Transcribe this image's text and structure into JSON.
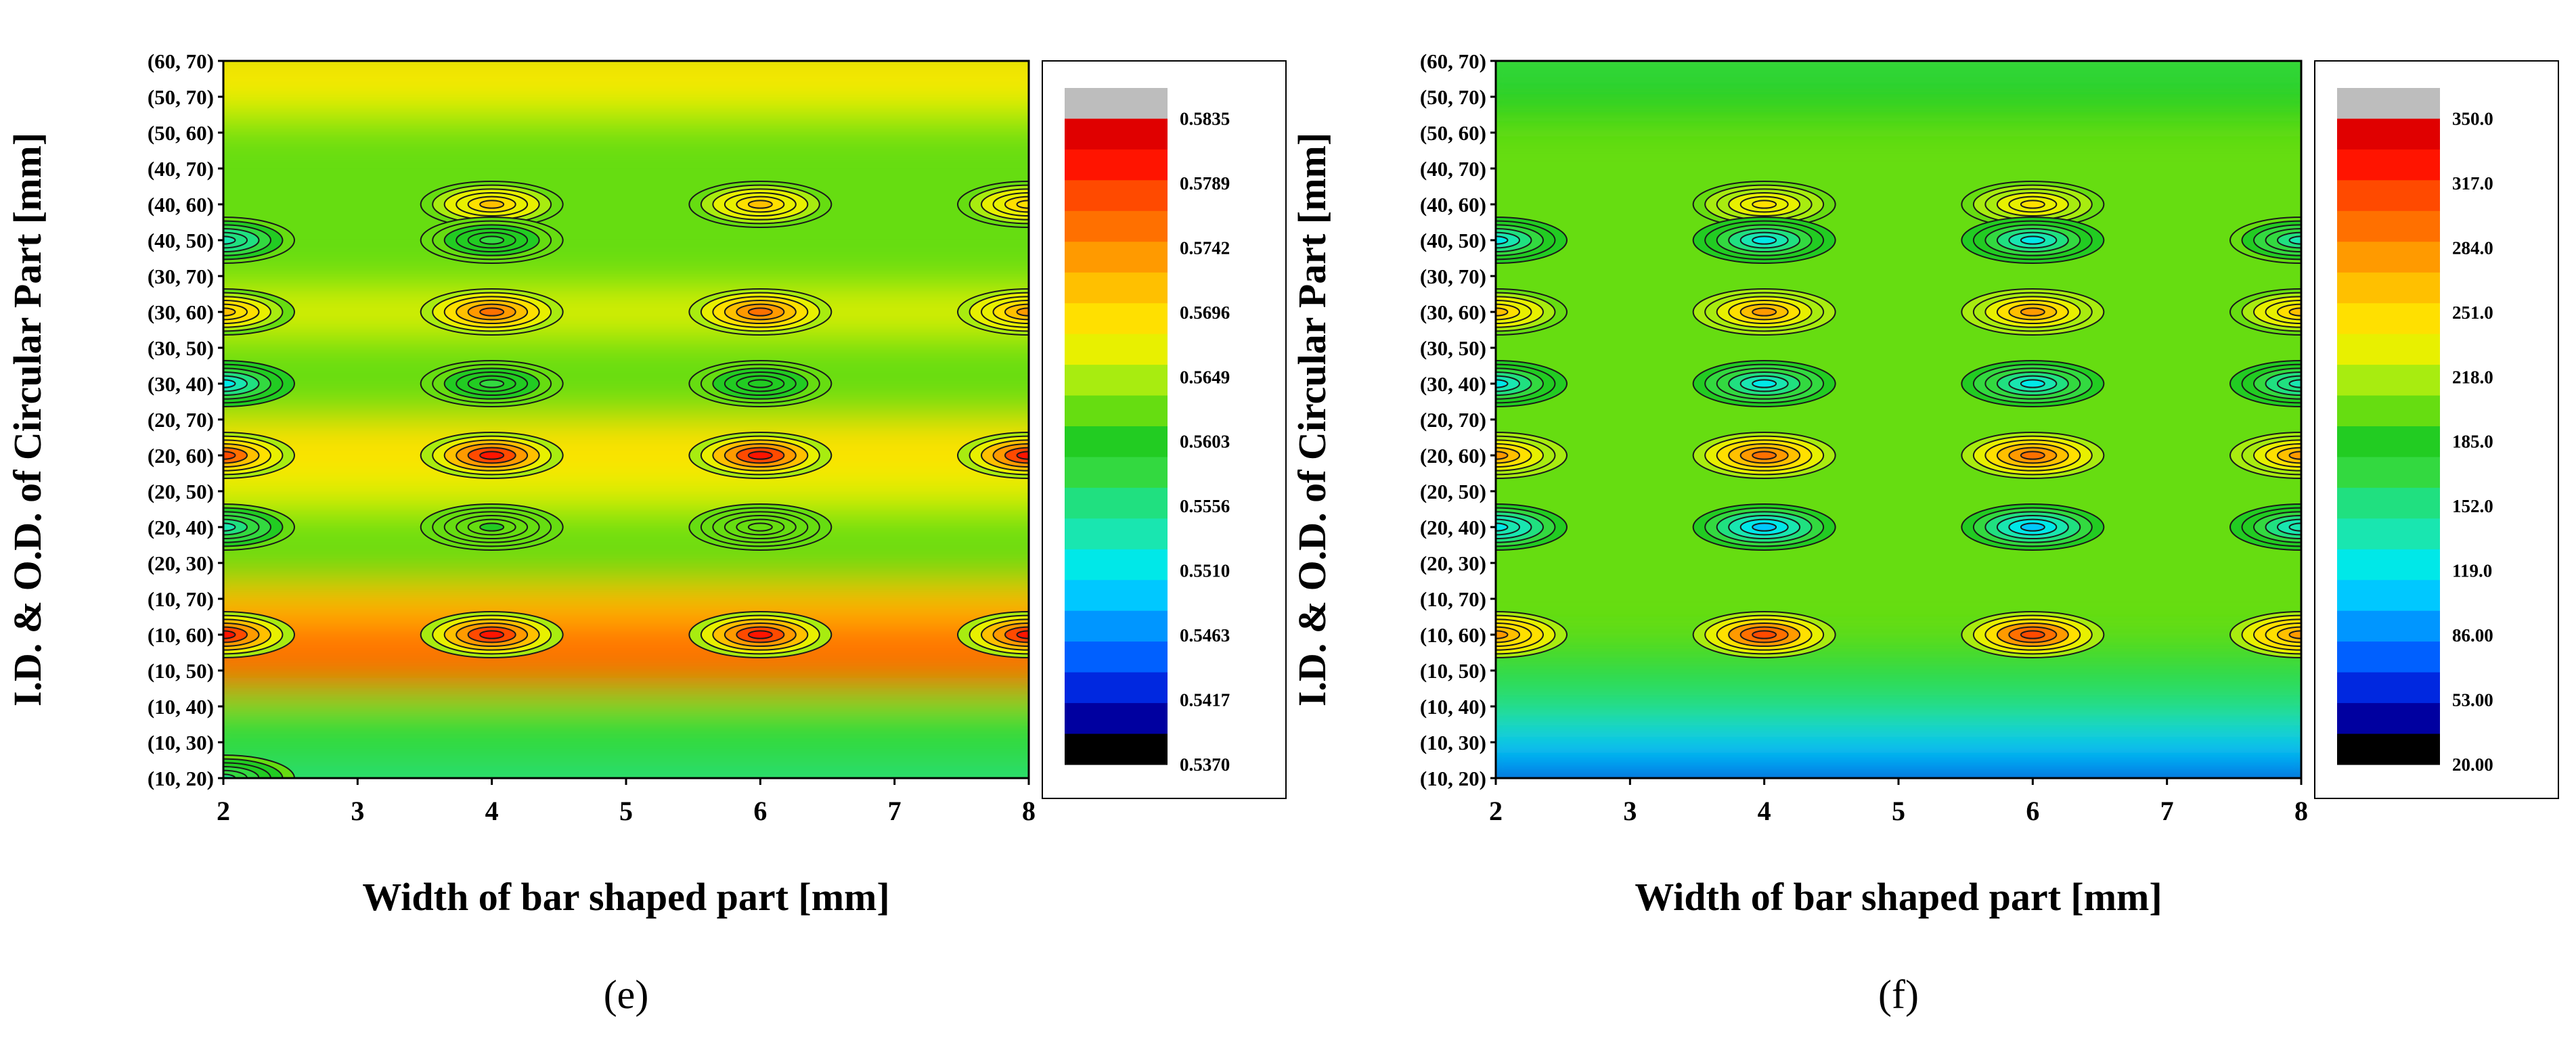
{
  "chart_data": [
    {
      "type": "heatmap",
      "subtitle": "(e)",
      "xlabel": "Width of bar shaped part [mm]",
      "ylabel": "I.D. & O.D. of Circular Part [mm]",
      "x": [
        2,
        3,
        4,
        5,
        6,
        7,
        8
      ],
      "xlim": [
        2,
        8
      ],
      "y_categories": [
        "(10, 20)",
        "(10, 30)",
        "(10, 40)",
        "(10, 50)",
        "(10, 60)",
        "(10, 70)",
        "(20, 30)",
        "(20, 40)",
        "(20, 50)",
        "(20, 60)",
        "(20, 70)",
        "(30, 40)",
        "(30, 50)",
        "(30, 60)",
        "(30, 70)",
        "(40, 50)",
        "(40, 60)",
        "(40, 70)",
        "(50, 60)",
        "(50, 70)",
        "(60, 70)"
      ],
      "colorbar_ticks": [
        "0.5835",
        "0.5789",
        "0.5742",
        "0.5696",
        "0.5649",
        "0.5603",
        "0.5556",
        "0.5510",
        "0.5463",
        "0.5417",
        "0.5370"
      ],
      "zlim": [
        0.537,
        0.5835
      ],
      "hotspots": [
        {
          "x": 2,
          "y": "(10, 60)",
          "value": 0.584
        },
        {
          "x": 4,
          "y": "(10, 60)",
          "value": 0.584
        },
        {
          "x": 6,
          "y": "(10, 60)",
          "value": 0.584
        },
        {
          "x": 8,
          "y": "(10, 60)",
          "value": 0.584
        },
        {
          "x": 2,
          "y": "(20, 60)",
          "value": 0.58
        },
        {
          "x": 4,
          "y": "(20, 60)",
          "value": 0.584
        },
        {
          "x": 6,
          "y": "(20, 60)",
          "value": 0.584
        },
        {
          "x": 8,
          "y": "(20, 60)",
          "value": 0.584
        },
        {
          "x": 4,
          "y": "(30, 60)",
          "value": 0.578
        },
        {
          "x": 6,
          "y": "(30, 60)",
          "value": 0.578
        },
        {
          "x": 8,
          "y": "(30, 60)",
          "value": 0.576
        },
        {
          "x": 2,
          "y": "(30, 60)",
          "value": 0.573
        },
        {
          "x": 4,
          "y": "(40, 60)",
          "value": 0.572
        },
        {
          "x": 6,
          "y": "(40, 60)",
          "value": 0.572
        },
        {
          "x": 8,
          "y": "(40, 60)",
          "value": 0.571
        },
        {
          "x": 2,
          "y": "(20, 40)",
          "value": 0.553
        },
        {
          "x": 2,
          "y": "(30, 40)",
          "value": 0.55
        },
        {
          "x": 2,
          "y": "(40, 50)",
          "value": 0.552
        },
        {
          "x": 4,
          "y": "(30, 40)",
          "value": 0.558
        },
        {
          "x": 4,
          "y": "(40, 50)",
          "value": 0.558
        },
        {
          "x": 6,
          "y": "(30, 40)",
          "value": 0.559
        },
        {
          "x": 4,
          "y": "(20, 40)",
          "value": 0.561
        },
        {
          "x": 6,
          "y": "(20, 40)",
          "value": 0.562
        },
        {
          "x": 2,
          "y": "(10, 20)",
          "value": 0.555
        }
      ]
    },
    {
      "type": "heatmap",
      "subtitle": "(f)",
      "xlabel": "Width of bar shaped part [mm]",
      "ylabel": "I.D. & O.D. of Circular Part [mm]",
      "x": [
        2,
        3,
        4,
        5,
        6,
        7,
        8
      ],
      "xlim": [
        2,
        8
      ],
      "y_categories": [
        "(10, 20)",
        "(10, 30)",
        "(10, 40)",
        "(10, 50)",
        "(10, 60)",
        "(10, 70)",
        "(20, 30)",
        "(20, 40)",
        "(20, 50)",
        "(20, 60)",
        "(20, 70)",
        "(30, 40)",
        "(30, 50)",
        "(30, 60)",
        "(30, 70)",
        "(40, 50)",
        "(40, 60)",
        "(40, 70)",
        "(50, 60)",
        "(50, 70)",
        "(60, 70)"
      ],
      "colorbar_ticks": [
        "350.0",
        "317.0",
        "284.0",
        "251.0",
        "218.0",
        "185.0",
        "152.0",
        "119.0",
        "86.00",
        "53.00",
        "20.00"
      ],
      "zlim": [
        20,
        350
      ],
      "hotspots": [
        {
          "x": 2,
          "y": "(10, 60)",
          "value": 300
        },
        {
          "x": 4,
          "y": "(10, 60)",
          "value": 330
        },
        {
          "x": 6,
          "y": "(10, 60)",
          "value": 330
        },
        {
          "x": 8,
          "y": "(10, 60)",
          "value": 300
        },
        {
          "x": 2,
          "y": "(20, 60)",
          "value": 290
        },
        {
          "x": 4,
          "y": "(20, 60)",
          "value": 320
        },
        {
          "x": 6,
          "y": "(20, 60)",
          "value": 320
        },
        {
          "x": 8,
          "y": "(20, 60)",
          "value": 290
        },
        {
          "x": 2,
          "y": "(30, 60)",
          "value": 270
        },
        {
          "x": 4,
          "y": "(30, 60)",
          "value": 290
        },
        {
          "x": 6,
          "y": "(30, 60)",
          "value": 290
        },
        {
          "x": 8,
          "y": "(30, 60)",
          "value": 270
        },
        {
          "x": 4,
          "y": "(40, 60)",
          "value": 255
        },
        {
          "x": 6,
          "y": "(40, 60)",
          "value": 255
        },
        {
          "x": 2,
          "y": "(20, 40)",
          "value": 100
        },
        {
          "x": 4,
          "y": "(20, 40)",
          "value": 90
        },
        {
          "x": 6,
          "y": "(20, 40)",
          "value": 90
        },
        {
          "x": 8,
          "y": "(20, 40)",
          "value": 120
        },
        {
          "x": 2,
          "y": "(30, 40)",
          "value": 110
        },
        {
          "x": 4,
          "y": "(30, 40)",
          "value": 105
        },
        {
          "x": 6,
          "y": "(30, 40)",
          "value": 105
        },
        {
          "x": 8,
          "y": "(30, 40)",
          "value": 125
        },
        {
          "x": 2,
          "y": "(40, 50)",
          "value": 115
        },
        {
          "x": 4,
          "y": "(40, 50)",
          "value": 115
        },
        {
          "x": 6,
          "y": "(40, 50)",
          "value": 115
        },
        {
          "x": 8,
          "y": "(40, 50)",
          "value": 130
        }
      ]
    }
  ]
}
